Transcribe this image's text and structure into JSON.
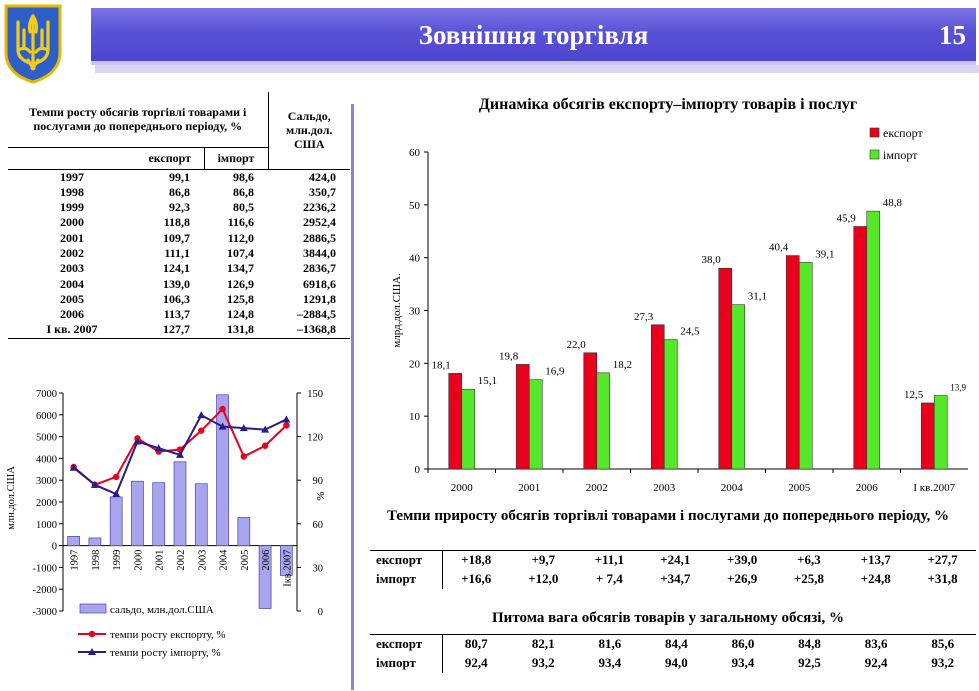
{
  "header": {
    "title": "Зовнішня торгівля",
    "page_number": "15"
  },
  "growth_table": {
    "title": "Темпи росту обсягів торгівлі товарами і послугами до попереднього періоду, %",
    "col_export": "експорт",
    "col_import": "імпорт",
    "col_balance": "Сальдо, млн.дол. США",
    "rows": [
      {
        "year": "1997",
        "export": "99,1",
        "import": "98,6",
        "balance": "424,0"
      },
      {
        "year": "1998",
        "export": "86,8",
        "import": "86,8",
        "balance": "350,7"
      },
      {
        "year": "1999",
        "export": "92,3",
        "import": "80,5",
        "balance": "2236,2"
      },
      {
        "year": "2000",
        "export": "118,8",
        "import": "116,6",
        "balance": "2952,4"
      },
      {
        "year": "2001",
        "export": "109,7",
        "import": "112,0",
        "balance": "2886,5"
      },
      {
        "year": "2002",
        "export": "111,1",
        "import": "107,4",
        "balance": "3844,0"
      },
      {
        "year": "2003",
        "export": "124,1",
        "import": "134,7",
        "balance": "2836,7"
      },
      {
        "year": "2004",
        "export": "139,0",
        "import": "126,9",
        "balance": "6918,6"
      },
      {
        "year": "2005",
        "export": "106,3",
        "import": "125,8",
        "balance": "1291,8"
      },
      {
        "year": "2006",
        "export": "113,7",
        "import": "124,8",
        "balance": "–2884,5"
      },
      {
        "year": "І кв. 2007",
        "export": "127,7",
        "import": "131,8",
        "balance": "–1368,8"
      }
    ]
  },
  "chart_data": [
    {
      "type": "bar",
      "title": "Динаміка обсягів експорту–імпорту товарів і послуг",
      "ylabel": "млрд.дол.США.",
      "ylim": [
        0,
        60
      ],
      "yticks": [
        0,
        10,
        20,
        30,
        40,
        50,
        60
      ],
      "categories": [
        "2000",
        "2001",
        "2002",
        "2003",
        "2004",
        "2005",
        "2006",
        "І кв.2007"
      ],
      "series": [
        {
          "name": "експорт",
          "color": "#e8001c",
          "values": [
            18.1,
            19.8,
            22.0,
            27.3,
            38.0,
            40.4,
            45.9,
            12.5
          ],
          "labels": [
            "18,1",
            "19,8",
            "22,0",
            "27,3",
            "38,0",
            "40,4",
            "45,9",
            "12,5"
          ]
        },
        {
          "name": "імпорт",
          "color": "#55e82a",
          "values": [
            15.1,
            16.9,
            18.2,
            24.5,
            31.1,
            39.1,
            48.8,
            13.9
          ],
          "labels": [
            "15,1",
            "16,9",
            "18,2",
            "24,5",
            "31,1",
            "39,1",
            "48,8",
            "13,9"
          ]
        }
      ],
      "legend": "top-right",
      "grid": false
    },
    {
      "type": "bar",
      "ylabel": "млн.дол.США",
      "y2label": "%",
      "ylim": [
        -3000,
        7000
      ],
      "yticks": [
        -3000,
        -2000,
        -1000,
        0,
        1000,
        2000,
        3000,
        4000,
        5000,
        6000,
        7000
      ],
      "y2lim": [
        0,
        150
      ],
      "y2ticks": [
        0,
        30,
        60,
        90,
        120,
        150
      ],
      "categories": [
        "1997",
        "1998",
        "1999",
        "2000",
        "2001",
        "2002",
        "2003",
        "2004",
        "2005",
        "2006",
        "Ікв.2007"
      ],
      "series": [
        {
          "name": "сальдо, млн.дол.США",
          "kind": "bar",
          "axis": "left",
          "color": "#a8a4ee",
          "values": [
            424.0,
            350.7,
            2236.2,
            2952.4,
            2886.5,
            3844.0,
            2836.7,
            6918.6,
            1291.8,
            -2884.5,
            -1368.8
          ]
        },
        {
          "name": "темпи росту експорту, %",
          "kind": "line",
          "axis": "right",
          "color": "#e8001c",
          "values": [
            99.1,
            86.8,
            92.3,
            118.8,
            109.7,
            111.1,
            124.1,
            139.0,
            106.3,
            113.7,
            127.7
          ]
        },
        {
          "name": "темпи росту імпорту, %",
          "kind": "line",
          "axis": "right",
          "color": "#2a1a8a",
          "values": [
            98.6,
            86.8,
            80.5,
            116.6,
            112.0,
            107.4,
            134.7,
            126.9,
            125.8,
            124.8,
            131.8
          ]
        }
      ],
      "legend": "bottom",
      "grid": false
    }
  ],
  "growth_rates": {
    "title": "Темпи  приросту обсягів торгівлі товарами і послугами до попереднього періоду, %",
    "export_label": "експорт",
    "import_label": "імпорт",
    "export": [
      "+18,8",
      "+9,7",
      "+11,1",
      "+24,1",
      "+39,0",
      "+6,3",
      "+13,7",
      "+27,7"
    ],
    "import": [
      "+16,6",
      "+12,0",
      "+ 7,4",
      "+34,7",
      "+26,9",
      "+25,8",
      "+24,8",
      "+31,8"
    ]
  },
  "share": {
    "title": "Питома вага обсягів товарів у загальному обсязі, %",
    "export_label": "експорт",
    "import_label": "імпорт",
    "export": [
      "80,7",
      "82,1",
      "81,6",
      "84,4",
      "86,0",
      "84,8",
      "83,6",
      "85,6"
    ],
    "import": [
      "92,4",
      "93,2",
      "93,4",
      "94,0",
      "93,4",
      "92,5",
      "92,4",
      "93,2"
    ]
  },
  "colors": {
    "header": "#5a52d6",
    "export": "#e8001c",
    "import": "#55e82a",
    "balance": "#a8a4ee",
    "import_line": "#2a1a8a"
  },
  "icons": {
    "emblem": "ukraine-trident-emblem"
  }
}
